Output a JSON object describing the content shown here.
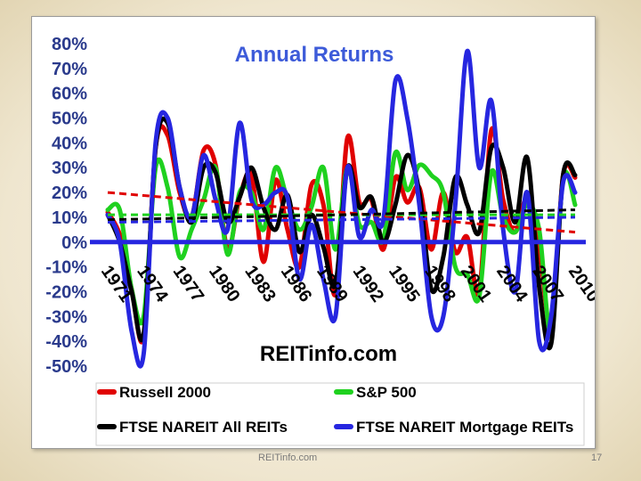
{
  "chart_data": {
    "type": "line",
    "title": "Annual Returns",
    "annotation": "REITinfo.com",
    "y_ticks": [
      "80%",
      "70%",
      "60%",
      "50%",
      "40%",
      "30%",
      "20%",
      "10%",
      "0%",
      "-10%",
      "-20%",
      "-30%",
      "-40%",
      "-50%"
    ],
    "x_tick_labels": [
      "1971",
      "1974",
      "1977",
      "1980",
      "1983",
      "1986",
      "1989",
      "1992",
      "1995",
      "1998",
      "2001",
      "2004",
      "2007",
      "2010"
    ],
    "ylim": [
      -50,
      80
    ],
    "x": [
      1971,
      1972,
      1973,
      1974,
      1975,
      1976,
      1977,
      1978,
      1979,
      1980,
      1981,
      1982,
      1983,
      1984,
      1985,
      1986,
      1987,
      1988,
      1989,
      1990,
      1991,
      1992,
      1993,
      1994,
      1995,
      1996,
      1997,
      1998,
      1999,
      2000,
      2001,
      2002,
      2003,
      2004,
      2005,
      2006,
      2007,
      2008,
      2009,
      2010
    ],
    "series": [
      {
        "name": "Russell 2000",
        "color": "#e00000",
        "values": [
          12,
          3,
          -19,
          -38,
          38,
          43,
          20,
          10,
          37,
          31,
          -3,
          18,
          27,
          -8,
          25,
          5,
          -10,
          23,
          15,
          -21,
          42,
          16,
          17,
          -3,
          26,
          16,
          22,
          -3,
          20,
          -4,
          2,
          -20,
          45,
          17,
          4,
          18,
          -2,
          -34,
          27,
          26
        ],
        "trend": [
          20,
          4
        ]
      },
      {
        "name": "S&P 500",
        "color": "#1fd11f",
        "values": [
          13,
          13,
          -19,
          -30,
          30,
          22,
          -6,
          5,
          17,
          30,
          -5,
          20,
          20,
          5,
          30,
          17,
          5,
          14,
          30,
          -3,
          30,
          7,
          8,
          1,
          36,
          21,
          31,
          27,
          20,
          -10,
          -13,
          -22,
          28,
          10,
          4,
          15,
          5,
          -37,
          26,
          15
        ],
        "trend": [
          11,
          11
        ]
      },
      {
        "name": "FTSE NAREIT All REITs",
        "color": "#000000",
        "values": [
          11,
          0,
          -20,
          -37,
          38,
          48,
          22,
          8,
          30,
          28,
          8,
          18,
          30,
          14,
          5,
          19,
          -4,
          11,
          -2,
          -17,
          30,
          14,
          18,
          0,
          15,
          35,
          20,
          -19,
          -6,
          26,
          15,
          4,
          38,
          30,
          8,
          34,
          -18,
          -41,
          27,
          27
        ],
        "trend": [
          9,
          13
        ]
      },
      {
        "name": "FTSE NAREIT Mortgage REITs",
        "color": "#2626e0",
        "values": [
          11,
          0,
          -36,
          -45,
          40,
          50,
          22,
          10,
          35,
          17,
          5,
          48,
          17,
          15,
          20,
          18,
          -15,
          7,
          -15,
          -30,
          30,
          2,
          13,
          9,
          65,
          50,
          15,
          -30,
          -30,
          15,
          77,
          30,
          57,
          5,
          -20,
          20,
          -40,
          -30,
          24,
          20
        ],
        "trend": [
          8,
          10
        ]
      }
    ],
    "legend_position": "bottom",
    "zero_line": true
  },
  "footer": {
    "left": "REITinfo.com",
    "right": "17"
  }
}
